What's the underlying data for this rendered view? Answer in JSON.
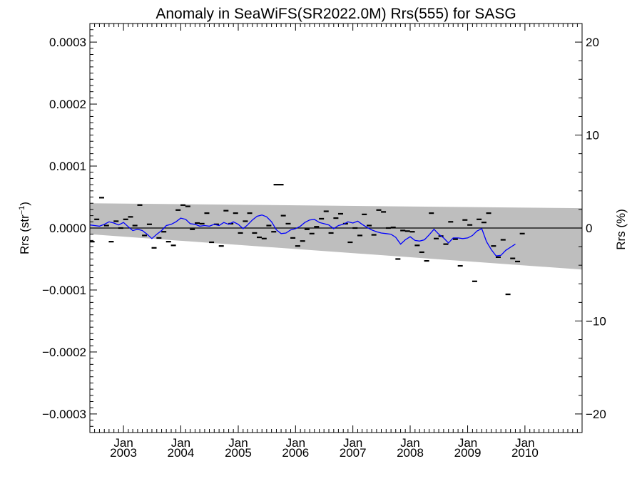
{
  "chart_data": {
    "type": "line",
    "title": "Anomaly in SeaWiFS(SR2022.0M) Rrs(555) for SASG",
    "ylabel": "Rrs (str",
    "ylabel_sup": "−1",
    "ylabel_close": ")",
    "y2label": "Rrs (%)",
    "xlim": [
      "2002-06-01",
      "2010-12-31"
    ],
    "ylim": [
      -0.00033,
      0.00033
    ],
    "y2lim": [
      -22,
      22
    ],
    "y_ticks": [
      {
        "value": 0.0003,
        "label": "0.0003"
      },
      {
        "value": 0.0002,
        "label": "0.0002"
      },
      {
        "value": 0.0001,
        "label": "0.0001"
      },
      {
        "value": 0.0,
        "label": "0.0000"
      },
      {
        "value": -0.0001,
        "label": "−0.0001"
      },
      {
        "value": -0.0002,
        "label": "−0.0002"
      },
      {
        "value": -0.0003,
        "label": "−0.0003"
      }
    ],
    "y2_ticks": [
      {
        "value": 20,
        "label": "20"
      },
      {
        "value": 10,
        "label": "10"
      },
      {
        "value": 0,
        "label": "0"
      },
      {
        "value": -10,
        "label": "−10"
      },
      {
        "value": -20,
        "label": "−20"
      }
    ],
    "x_ticks": [
      {
        "date": "2003-01-01",
        "month": "Jan",
        "year": "2003"
      },
      {
        "date": "2004-01-01",
        "month": "Jan",
        "year": "2004"
      },
      {
        "date": "2005-01-01",
        "month": "Jan",
        "year": "2005"
      },
      {
        "date": "2006-01-01",
        "month": "Jan",
        "year": "2006"
      },
      {
        "date": "2007-01-01",
        "month": "Jan",
        "year": "2007"
      },
      {
        "date": "2008-01-01",
        "month": "Jan",
        "year": "2008"
      },
      {
        "date": "2009-01-01",
        "month": "Jan",
        "year": "2009"
      },
      {
        "date": "2010-01-01",
        "month": "Jan",
        "year": "2010"
      }
    ],
    "envelope": {
      "x": [
        "2002-06-01",
        "2010-12-31"
      ],
      "upper": [
        4e-05,
        3.2e-05
      ],
      "lower": [
        -1e-05,
        -6.7e-05
      ],
      "color": "#bebebe"
    },
    "zero_line_color": "#000000",
    "series": [
      {
        "kind": "monthly_anomaly",
        "color": "#000000",
        "points": [
          [
            "2002-06-15",
            -2.2e-05
          ],
          [
            "2002-07-15",
            1.4e-05
          ],
          [
            "2002-08-15",
            4.9e-05
          ],
          [
            "2002-09-15",
            4e-06
          ],
          [
            "2002-10-15",
            -2.2e-05
          ],
          [
            "2002-11-15",
            1.1e-05
          ],
          [
            "2002-12-15",
            0.0
          ],
          [
            "2003-01-15",
            1.4e-05
          ],
          [
            "2003-02-15",
            1.8e-05
          ],
          [
            "2003-03-15",
            4e-06
          ],
          [
            "2003-04-15",
            3.7e-05
          ],
          [
            "2003-05-15",
            -1.2e-05
          ],
          [
            "2003-06-15",
            6e-06
          ],
          [
            "2003-07-15",
            -3.2e-05
          ],
          [
            "2003-08-15",
            -1.6e-05
          ],
          [
            "2003-09-15",
            -6e-06
          ],
          [
            "2003-10-15",
            -2.2e-05
          ],
          [
            "2003-11-15",
            -2.8e-05
          ],
          [
            "2003-12-15",
            2.9e-05
          ],
          [
            "2004-01-15",
            3.7e-05
          ],
          [
            "2004-02-15",
            3.5e-05
          ],
          [
            "2004-03-15",
            -2e-06
          ],
          [
            "2004-04-15",
            8e-06
          ],
          [
            "2004-05-15",
            7e-06
          ],
          [
            "2004-06-15",
            2.4e-05
          ],
          [
            "2004-07-15",
            -2.3e-05
          ],
          [
            "2004-08-15",
            6e-06
          ],
          [
            "2004-09-15",
            -2.9e-05
          ],
          [
            "2004-10-15",
            2.8e-05
          ],
          [
            "2004-11-15",
            7e-06
          ],
          [
            "2004-12-15",
            2.4e-05
          ],
          [
            "2005-01-15",
            -8e-06
          ],
          [
            "2005-02-15",
            1.1e-05
          ],
          [
            "2005-03-15",
            2.4e-05
          ],
          [
            "2005-04-15",
            -8e-06
          ],
          [
            "2005-05-15",
            -1.5e-05
          ],
          [
            "2005-06-15",
            -1.7e-05
          ],
          [
            "2005-07-15",
            4e-06
          ],
          [
            "2005-08-15",
            -6e-06
          ],
          [
            "2005-09-15",
            7e-05
          ],
          [
            "2005-10-15",
            2e-05
          ],
          [
            "2005-11-15",
            7e-06
          ],
          [
            "2005-12-15",
            -1.6e-05
          ],
          [
            "2006-01-15",
            -2.9e-05
          ],
          [
            "2006-02-15",
            -2.1e-05
          ],
          [
            "2006-03-15",
            -2e-06
          ],
          [
            "2006-04-15",
            -9e-06
          ],
          [
            "2006-05-15",
            2e-06
          ],
          [
            "2006-06-15",
            1.5e-05
          ],
          [
            "2006-07-15",
            2.7e-05
          ],
          [
            "2006-08-15",
            -8e-06
          ],
          [
            "2006-09-15",
            1.6e-05
          ],
          [
            "2006-10-15",
            2.3e-05
          ],
          [
            "2006-11-15",
            7e-06
          ],
          [
            "2006-12-15",
            -2.3e-05
          ],
          [
            "2007-01-15",
            0.0
          ],
          [
            "2007-02-15",
            -1.2e-05
          ],
          [
            "2007-03-15",
            2.2e-05
          ],
          [
            "2007-04-15",
            4e-06
          ],
          [
            "2007-05-15",
            -1.1e-05
          ],
          [
            "2007-06-15",
            2.9e-05
          ],
          [
            "2007-07-15",
            2.6e-05
          ],
          [
            "2007-08-15",
            0.0
          ],
          [
            "2007-09-15",
            1e-06
          ],
          [
            "2007-10-15",
            -5e-05
          ],
          [
            "2007-11-15",
            -4e-06
          ],
          [
            "2007-12-15",
            -5e-06
          ],
          [
            "2008-01-15",
            -6e-06
          ],
          [
            "2008-02-15",
            -2.8e-05
          ],
          [
            "2008-03-15",
            -3.9e-05
          ],
          [
            "2008-04-15",
            -5.3e-05
          ],
          [
            "2008-05-15",
            2.4e-05
          ],
          [
            "2008-06-15",
            -1.7e-05
          ],
          [
            "2008-07-15",
            -1.3e-05
          ],
          [
            "2008-08-15",
            -2.6e-05
          ],
          [
            "2008-09-15",
            1e-05
          ],
          [
            "2008-10-15",
            -1.8e-05
          ],
          [
            "2008-11-15",
            -6.1e-05
          ],
          [
            "2008-12-15",
            1.3e-05
          ],
          [
            "2009-01-15",
            5e-06
          ],
          [
            "2009-02-15",
            -8.6e-05
          ],
          [
            "2009-03-15",
            1.4e-05
          ],
          [
            "2009-04-15",
            9e-06
          ],
          [
            "2009-05-15",
            2.4e-05
          ],
          [
            "2009-06-15",
            -2.9e-05
          ],
          [
            "2009-07-15",
            -4.7e-05
          ],
          [
            "2009-08-15",
            -1.9e-05
          ],
          [
            "2009-09-15",
            -0.000107
          ],
          [
            "2009-10-15",
            -4.9e-05
          ],
          [
            "2009-11-15",
            -5.4e-05
          ],
          [
            "2009-12-15",
            -9e-06
          ]
        ]
      },
      {
        "kind": "running_mean",
        "color": "#0000ff",
        "points": [
          [
            "2002-06-01",
            5e-06
          ],
          [
            "2002-07-01",
            4e-06
          ],
          [
            "2002-08-01",
            3e-06
          ],
          [
            "2002-09-01",
            6e-06
          ],
          [
            "2002-10-01",
            1e-05
          ],
          [
            "2002-11-01",
            8e-06
          ],
          [
            "2002-12-01",
            5e-06
          ],
          [
            "2003-01-01",
            9e-06
          ],
          [
            "2003-02-01",
            2e-06
          ],
          [
            "2003-03-01",
            -4e-06
          ],
          [
            "2003-04-01",
            -2e-06
          ],
          [
            "2003-05-01",
            -4e-06
          ],
          [
            "2003-06-01",
            -1e-05
          ],
          [
            "2003-07-01",
            -1.7e-05
          ],
          [
            "2003-08-01",
            -1e-05
          ],
          [
            "2003-09-01",
            -4e-06
          ],
          [
            "2003-10-01",
            4e-06
          ],
          [
            "2003-11-01",
            6e-06
          ],
          [
            "2003-12-01",
            1e-05
          ],
          [
            "2004-01-01",
            1.6e-05
          ],
          [
            "2004-02-01",
            1.4e-05
          ],
          [
            "2004-03-01",
            7e-06
          ],
          [
            "2004-04-01",
            6e-06
          ],
          [
            "2004-05-01",
            3e-06
          ],
          [
            "2004-06-01",
            4e-06
          ],
          [
            "2004-07-01",
            3e-06
          ],
          [
            "2004-08-01",
            6e-06
          ],
          [
            "2004-09-01",
            4e-06
          ],
          [
            "2004-10-01",
            9e-06
          ],
          [
            "2004-11-01",
            6e-06
          ],
          [
            "2004-12-01",
            1e-05
          ],
          [
            "2005-01-01",
            6e-06
          ],
          [
            "2005-02-01",
            -1e-06
          ],
          [
            "2005-03-01",
            5e-06
          ],
          [
            "2005-04-01",
            1.3e-05
          ],
          [
            "2005-05-01",
            1.9e-05
          ],
          [
            "2005-06-01",
            2.1e-05
          ],
          [
            "2005-07-01",
            1.8e-05
          ],
          [
            "2005-08-01",
            1e-05
          ],
          [
            "2005-09-01",
            -3e-06
          ],
          [
            "2005-10-01",
            -9e-06
          ],
          [
            "2005-11-01",
            -8e-06
          ],
          [
            "2005-12-01",
            -3e-06
          ],
          [
            "2006-01-01",
            -1e-06
          ],
          [
            "2006-02-01",
            3e-06
          ],
          [
            "2006-03-01",
            9e-06
          ],
          [
            "2006-04-01",
            1.3e-05
          ],
          [
            "2006-05-01",
            1.4e-05
          ],
          [
            "2006-06-01",
            9e-06
          ],
          [
            "2006-07-01",
            7e-06
          ],
          [
            "2006-08-01",
            5e-06
          ],
          [
            "2006-09-01",
            -1e-06
          ],
          [
            "2006-10-01",
            4e-06
          ],
          [
            "2006-11-01",
            6e-06
          ],
          [
            "2006-12-01",
            1e-05
          ],
          [
            "2007-01-01",
            8e-06
          ],
          [
            "2007-02-01",
            1.1e-05
          ],
          [
            "2007-03-01",
            6e-06
          ],
          [
            "2007-04-01",
            1e-06
          ],
          [
            "2007-05-01",
            -3e-06
          ],
          [
            "2007-06-01",
            -6e-06
          ],
          [
            "2007-07-01",
            -8e-06
          ],
          [
            "2007-08-01",
            -9e-06
          ],
          [
            "2007-09-01",
            -1e-05
          ],
          [
            "2007-10-01",
            -1.5e-05
          ],
          [
            "2007-11-01",
            -2.6e-05
          ],
          [
            "2007-12-01",
            -1.9e-05
          ],
          [
            "2008-01-01",
            -1.4e-05
          ],
          [
            "2008-02-01",
            -2e-05
          ],
          [
            "2008-03-01",
            -2.1e-05
          ],
          [
            "2008-04-01",
            -1.9e-05
          ],
          [
            "2008-05-01",
            -1.1e-05
          ],
          [
            "2008-06-01",
            -2e-06
          ],
          [
            "2008-07-01",
            -1e-05
          ],
          [
            "2008-08-01",
            -1.6e-05
          ],
          [
            "2008-09-01",
            -2.4e-05
          ],
          [
            "2008-10-01",
            -1.6e-05
          ],
          [
            "2008-11-01",
            -1.6e-05
          ],
          [
            "2008-12-01",
            -1.7e-05
          ],
          [
            "2009-01-01",
            -1.6e-05
          ],
          [
            "2009-02-01",
            -1.2e-05
          ],
          [
            "2009-03-01",
            -5e-06
          ],
          [
            "2009-04-01",
            -1e-06
          ],
          [
            "2009-05-01",
            -2.2e-05
          ],
          [
            "2009-06-01",
            -3.5e-05
          ],
          [
            "2009-07-01",
            -4.5e-05
          ],
          [
            "2009-08-01",
            -4.4e-05
          ],
          [
            "2009-09-01",
            -3.6e-05
          ],
          [
            "2009-10-01",
            -3.1e-05
          ],
          [
            "2009-11-01",
            -2.6e-05
          ]
        ]
      }
    ]
  }
}
